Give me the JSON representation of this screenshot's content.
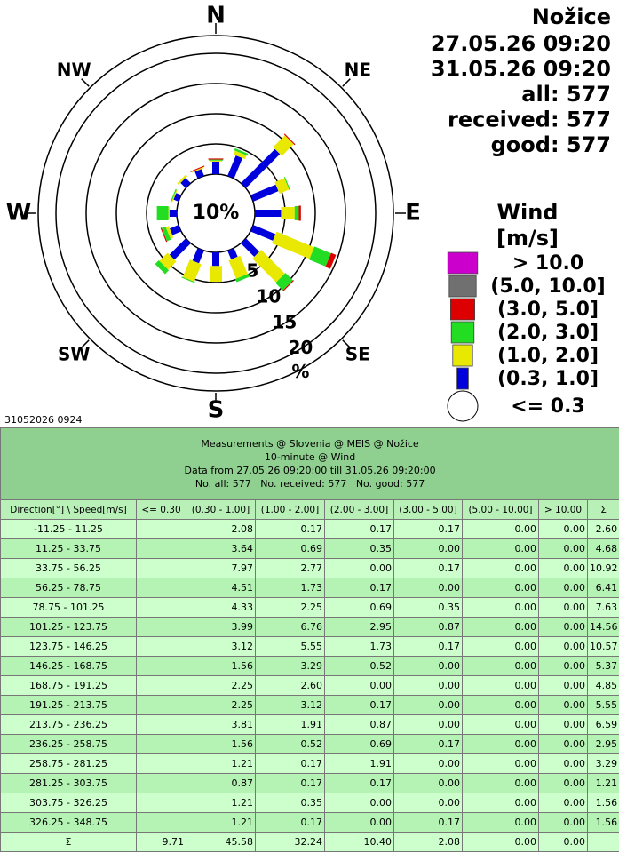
{
  "chart_data": {
    "type": "windrose",
    "title": "Nožice",
    "info": [
      "27.05.26 09:20",
      "31.05.26 09:20",
      "all: 577",
      "received: 577",
      "good: 577"
    ],
    "footnote": "31052026 0924",
    "direction_labels": [
      "N",
      "NE",
      "E",
      "SE",
      "S",
      "SW",
      "W",
      "NW"
    ],
    "rlim": [
      0,
      20
    ],
    "rticks": [
      5,
      10,
      15,
      20
    ],
    "r_unit": "%",
    "calm": {
      "name": "<= 0.3",
      "value": 9.71,
      "label": "10%"
    },
    "legend_title": [
      "Wind",
      "[m/s]"
    ],
    "series": [
      {
        "name": "(0.3, 1.0]",
        "color": "#0000dd",
        "values": [
          2.08,
          3.64,
          7.97,
          4.51,
          4.33,
          3.99,
          3.12,
          1.56,
          2.25,
          2.25,
          3.81,
          1.56,
          1.21,
          0.87,
          1.21,
          1.21
        ]
      },
      {
        "name": "(1.0, 2.0]",
        "color": "#e8e800",
        "values": [
          0.17,
          0.69,
          2.77,
          1.73,
          2.25,
          6.76,
          5.55,
          3.29,
          2.6,
          3.12,
          1.91,
          0.52,
          0.17,
          0.17,
          0.35,
          0.17
        ]
      },
      {
        "name": "(2.0, 3.0]",
        "color": "#22dd22",
        "values": [
          0.17,
          0.35,
          0,
          0.17,
          0.69,
          2.95,
          1.73,
          0.52,
          0,
          0.17,
          0.87,
          0.69,
          1.91,
          0.17,
          0,
          0
        ]
      },
      {
        "name": "(3.0, 5.0]",
        "color": "#dd0000",
        "values": [
          0.17,
          0,
          0.17,
          0,
          0.35,
          0.87,
          0.17,
          0,
          0,
          0,
          0,
          0.17,
          0,
          0,
          0,
          0.17
        ]
      },
      {
        "name": "(5.0, 10.0]",
        "color": "#707070",
        "values": [
          0,
          0,
          0,
          0,
          0,
          0,
          0,
          0,
          0,
          0,
          0,
          0,
          0,
          0,
          0,
          0
        ]
      },
      {
        "name": "> 10.0",
        "color": "#cc00cc",
        "values": [
          0,
          0,
          0,
          0,
          0,
          0,
          0,
          0,
          0,
          0,
          0,
          0,
          0,
          0,
          0,
          0
        ]
      }
    ]
  },
  "table": {
    "header": [
      "Measurements @ Slovenia @ MEIS @ Nožice",
      "10-minute @ Wind",
      "Data from 27.05.26 09:20:00 till 31.05.26 09:20:00",
      "No. all: 577   No. received: 577   No. good: 577"
    ],
    "columns": [
      "Direction[°] \\ Speed[m/s]",
      "<= 0.30",
      "(0.30 - 1.00]",
      "(1.00 - 2.00]",
      "(2.00 - 3.00]",
      "(3.00 - 5.00]",
      "(5.00 - 10.00]",
      "> 10.00",
      "Σ"
    ],
    "rows": [
      [
        "-11.25 - 11.25",
        null,
        "2.08",
        "0.17",
        "0.17",
        "0.17",
        "0.00",
        "0.00",
        "2.60"
      ],
      [
        "11.25 - 33.75",
        null,
        "3.64",
        "0.69",
        "0.35",
        "0.00",
        "0.00",
        "0.00",
        "4.68"
      ],
      [
        "33.75 - 56.25",
        null,
        "7.97",
        "2.77",
        "0.00",
        "0.17",
        "0.00",
        "0.00",
        "10.92"
      ],
      [
        "56.25 - 78.75",
        null,
        "4.51",
        "1.73",
        "0.17",
        "0.00",
        "0.00",
        "0.00",
        "6.41"
      ],
      [
        "78.75 - 101.25",
        null,
        "4.33",
        "2.25",
        "0.69",
        "0.35",
        "0.00",
        "0.00",
        "7.63"
      ],
      [
        "101.25 - 123.75",
        null,
        "3.99",
        "6.76",
        "2.95",
        "0.87",
        "0.00",
        "0.00",
        "14.56"
      ],
      [
        "123.75 - 146.25",
        null,
        "3.12",
        "5.55",
        "1.73",
        "0.17",
        "0.00",
        "0.00",
        "10.57"
      ],
      [
        "146.25 - 168.75",
        null,
        "1.56",
        "3.29",
        "0.52",
        "0.00",
        "0.00",
        "0.00",
        "5.37"
      ],
      [
        "168.75 - 191.25",
        null,
        "2.25",
        "2.60",
        "0.00",
        "0.00",
        "0.00",
        "0.00",
        "4.85"
      ],
      [
        "191.25 - 213.75",
        null,
        "2.25",
        "3.12",
        "0.17",
        "0.00",
        "0.00",
        "0.00",
        "5.55"
      ],
      [
        "213.75 - 236.25",
        null,
        "3.81",
        "1.91",
        "0.87",
        "0.00",
        "0.00",
        "0.00",
        "6.59"
      ],
      [
        "236.25 - 258.75",
        null,
        "1.56",
        "0.52",
        "0.69",
        "0.17",
        "0.00",
        "0.00",
        "2.95"
      ],
      [
        "258.75 - 281.25",
        null,
        "1.21",
        "0.17",
        "1.91",
        "0.00",
        "0.00",
        "0.00",
        "3.29"
      ],
      [
        "281.25 - 303.75",
        null,
        "0.87",
        "0.17",
        "0.17",
        "0.00",
        "0.00",
        "0.00",
        "1.21"
      ],
      [
        "303.75 - 326.25",
        null,
        "1.21",
        "0.35",
        "0.00",
        "0.00",
        "0.00",
        "0.00",
        "1.56"
      ],
      [
        "326.25 - 348.75",
        null,
        "1.21",
        "0.17",
        "0.00",
        "0.17",
        "0.00",
        "0.00",
        "1.56"
      ],
      [
        "Σ",
        "9.71",
        "45.58",
        "32.24",
        "10.40",
        "2.08",
        "0.00",
        "0.00",
        null
      ]
    ]
  }
}
